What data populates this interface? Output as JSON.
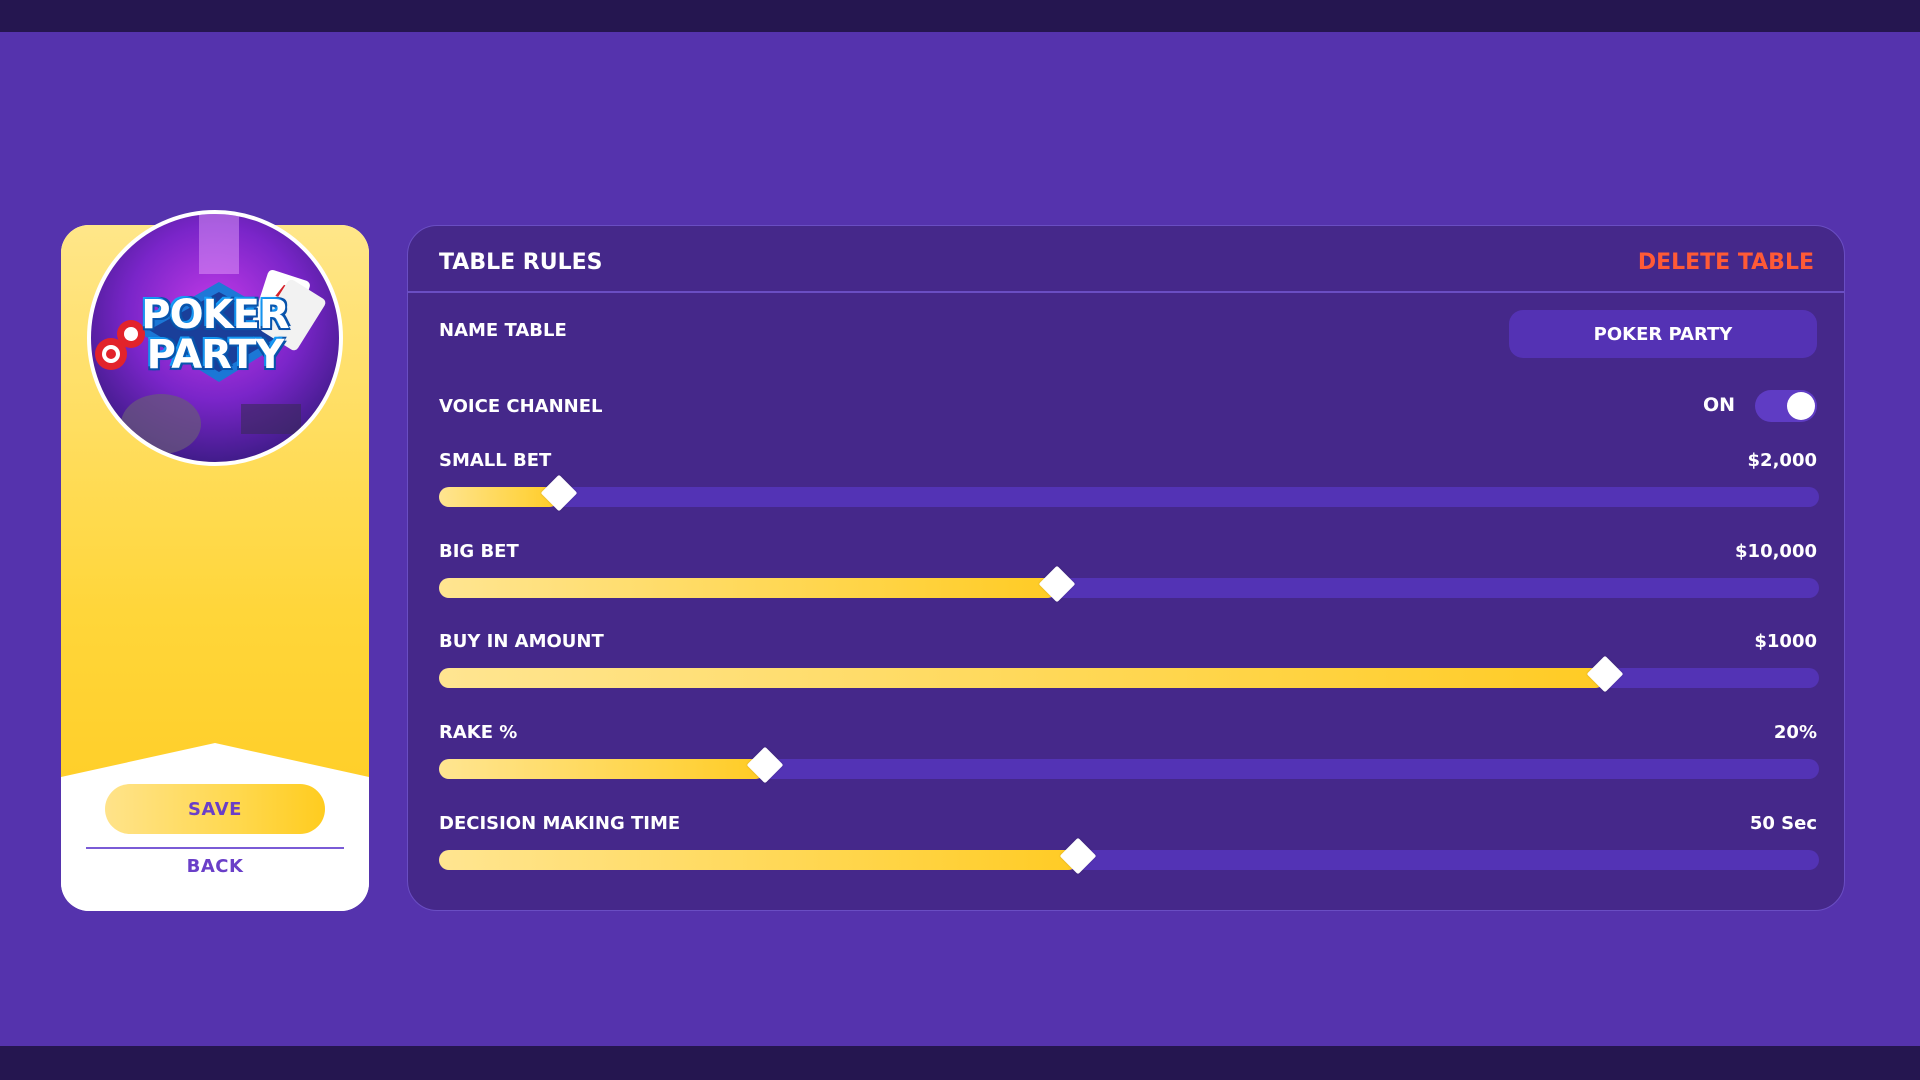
{
  "sidebar": {
    "logo_line1": "POKER",
    "logo_line2": "PARTY",
    "save_label": "SAVE",
    "back_label": "BACK"
  },
  "panel": {
    "title": "TABLE RULES",
    "delete_label": "DELETE TABLE",
    "name_table": {
      "label": "NAME TABLE",
      "value": "POKER PARTY"
    },
    "voice_channel": {
      "label": "VOICE CHANNEL",
      "state": "ON",
      "enabled": true
    },
    "sliders": [
      {
        "key": "small_bet",
        "label": "SMALL BET",
        "value": "$2,000",
        "fraction": 0.087
      },
      {
        "key": "big_bet",
        "label": "BIG BET",
        "value": "$10,000",
        "fraction": 0.448
      },
      {
        "key": "buy_in",
        "label": "BUY IN AMOUNT",
        "value": "$1000",
        "fraction": 0.845
      },
      {
        "key": "rake",
        "label": "RAKE %",
        "value": "20%",
        "fraction": 0.236
      },
      {
        "key": "decision_time",
        "label": "DECISION MAKING TIME",
        "value": "50 Sec",
        "fraction": 0.463
      }
    ]
  },
  "colors": {
    "background": "#5533ad",
    "panel": "#45288a",
    "accent_yellow": "#ffd445",
    "delete_red": "#ff5a36",
    "purple_text": "#6a3fc8"
  }
}
